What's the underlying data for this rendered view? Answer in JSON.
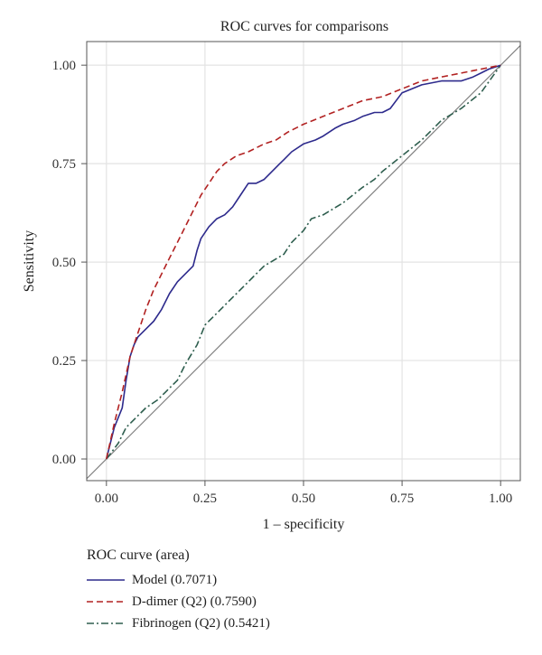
{
  "chart_data": {
    "type": "line",
    "title": "ROC curves for comparisons",
    "xlabel": "1 – specificity",
    "ylabel": "Sensitivity",
    "xlim": [
      -0.05,
      1.05
    ],
    "ylim": [
      -0.055,
      1.06
    ],
    "xticks": [
      "0.00",
      "0.25",
      "0.50",
      "0.75",
      "1.00"
    ],
    "yticks": [
      "0.00",
      "0.25",
      "0.50",
      "0.75",
      "1.00"
    ],
    "grid": true,
    "legend_title": "ROC curve (area)",
    "legend_position": "bottom",
    "series": [
      {
        "name": "Model (0.7071)",
        "color": "#2d2a8c",
        "dash": "solid",
        "x": [
          0.0,
          0.02,
          0.04,
          0.05,
          0.06,
          0.07,
          0.08,
          0.1,
          0.12,
          0.14,
          0.16,
          0.18,
          0.2,
          0.22,
          0.23,
          0.24,
          0.26,
          0.28,
          0.3,
          0.32,
          0.34,
          0.36,
          0.38,
          0.4,
          0.42,
          0.44,
          0.45,
          0.47,
          0.5,
          0.53,
          0.55,
          0.58,
          0.6,
          0.63,
          0.65,
          0.68,
          0.7,
          0.72,
          0.75,
          0.8,
          0.85,
          0.9,
          0.93,
          0.95,
          0.97,
          1.0
        ],
        "y": [
          0.0,
          0.08,
          0.13,
          0.2,
          0.26,
          0.29,
          0.31,
          0.33,
          0.35,
          0.38,
          0.42,
          0.45,
          0.47,
          0.49,
          0.53,
          0.56,
          0.59,
          0.61,
          0.62,
          0.64,
          0.67,
          0.7,
          0.7,
          0.71,
          0.73,
          0.75,
          0.76,
          0.78,
          0.8,
          0.81,
          0.82,
          0.84,
          0.85,
          0.86,
          0.87,
          0.88,
          0.88,
          0.89,
          0.93,
          0.95,
          0.96,
          0.96,
          0.97,
          0.98,
          0.99,
          1.0
        ]
      },
      {
        "name": "D-dimer (Q2) (0.7590)",
        "color": "#b22222",
        "dash": "dashed",
        "x": [
          0.0,
          0.02,
          0.04,
          0.06,
          0.08,
          0.1,
          0.12,
          0.14,
          0.16,
          0.18,
          0.2,
          0.22,
          0.24,
          0.26,
          0.28,
          0.3,
          0.33,
          0.36,
          0.4,
          0.43,
          0.46,
          0.5,
          0.55,
          0.6,
          0.65,
          0.7,
          0.75,
          0.8,
          0.85,
          0.9,
          0.95,
          1.0
        ],
        "y": [
          0.0,
          0.09,
          0.17,
          0.26,
          0.32,
          0.38,
          0.43,
          0.47,
          0.51,
          0.55,
          0.59,
          0.63,
          0.67,
          0.7,
          0.73,
          0.75,
          0.77,
          0.78,
          0.8,
          0.81,
          0.83,
          0.85,
          0.87,
          0.89,
          0.91,
          0.92,
          0.94,
          0.96,
          0.97,
          0.98,
          0.99,
          1.0
        ]
      },
      {
        "name": "Fibrinogen (Q2) (0.5421)",
        "color": "#2e5e4e",
        "dash": "dashdot",
        "x": [
          0.0,
          0.03,
          0.05,
          0.08,
          0.1,
          0.13,
          0.15,
          0.18,
          0.2,
          0.23,
          0.25,
          0.28,
          0.3,
          0.33,
          0.37,
          0.4,
          0.45,
          0.47,
          0.5,
          0.52,
          0.55,
          0.6,
          0.65,
          0.68,
          0.7,
          0.75,
          0.8,
          0.85,
          0.9,
          0.95,
          1.0
        ],
        "y": [
          0.0,
          0.04,
          0.08,
          0.11,
          0.13,
          0.15,
          0.17,
          0.2,
          0.24,
          0.29,
          0.34,
          0.37,
          0.39,
          0.42,
          0.46,
          0.49,
          0.52,
          0.55,
          0.58,
          0.61,
          0.62,
          0.65,
          0.69,
          0.71,
          0.73,
          0.77,
          0.81,
          0.86,
          0.89,
          0.93,
          1.0
        ]
      },
      {
        "name": "",
        "color": "#808080",
        "dash": "solid",
        "x": [
          -0.05,
          1.05
        ],
        "y": [
          -0.05,
          1.05
        ]
      }
    ]
  }
}
